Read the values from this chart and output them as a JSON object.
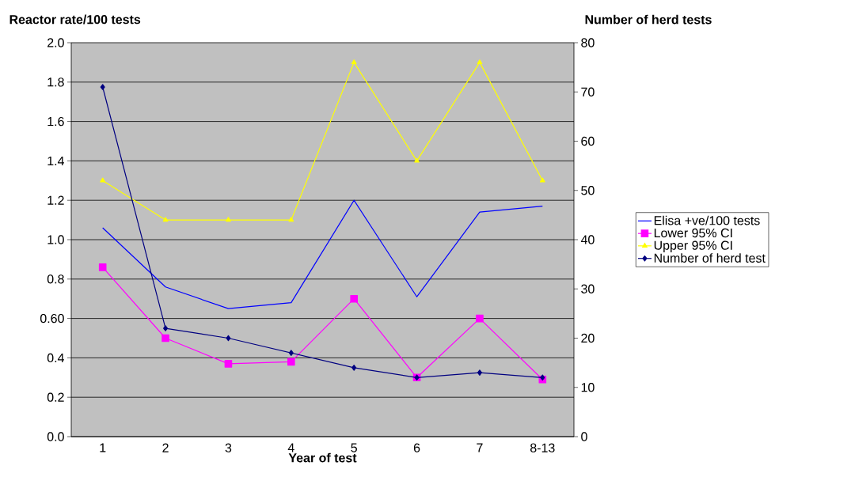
{
  "chart_data": {
    "type": "line",
    "ylabel": "Reactor rate/100 tests",
    "y2label": "Number of herd tests",
    "xlabel": "Year of test",
    "categories": [
      "1",
      "2",
      "3",
      "4",
      "5",
      "6",
      "7",
      "8-13"
    ],
    "series": [
      {
        "name": "Elisa +ve/100 tests",
        "color": "#0000ff",
        "marker": "none",
        "values": [
          1.06,
          0.76,
          0.65,
          0.68,
          1.2,
          0.71,
          1.14,
          1.17
        ]
      },
      {
        "name": "Lower 95% CI",
        "color": "#ff00ff",
        "marker": "square",
        "values": [
          0.86,
          0.5,
          0.37,
          0.38,
          0.7,
          0.3,
          0.6,
          0.29
        ]
      },
      {
        "name": "Upper 95% CI",
        "color": "#ffff00",
        "marker": "triangle",
        "values": [
          1.3,
          1.1,
          1.1,
          1.1,
          1.9,
          1.4,
          1.9,
          1.3
        ]
      },
      {
        "name": "Number of herd test",
        "color": "#000080",
        "marker": "diamond",
        "axis": "y2",
        "values": [
          71,
          22,
          20,
          17,
          14,
          12,
          13,
          12
        ]
      }
    ],
    "ylim": [
      0,
      2
    ],
    "yticks": [
      {
        "value": 0,
        "label": "0.0"
      },
      0.2,
      0.4,
      {
        "value": 0.6,
        "label": "0.60"
      },
      0.8,
      {
        "value": 1,
        "label": "1.0"
      },
      1.2,
      1.4,
      1.6,
      1.8,
      {
        "value": 2,
        "label": "2.0"
      }
    ],
    "y2lim": [
      0,
      80
    ],
    "y2ticks": [
      0,
      10,
      20,
      30,
      40,
      50,
      60,
      70,
      80
    ],
    "grid": "y",
    "legend": "right"
  }
}
